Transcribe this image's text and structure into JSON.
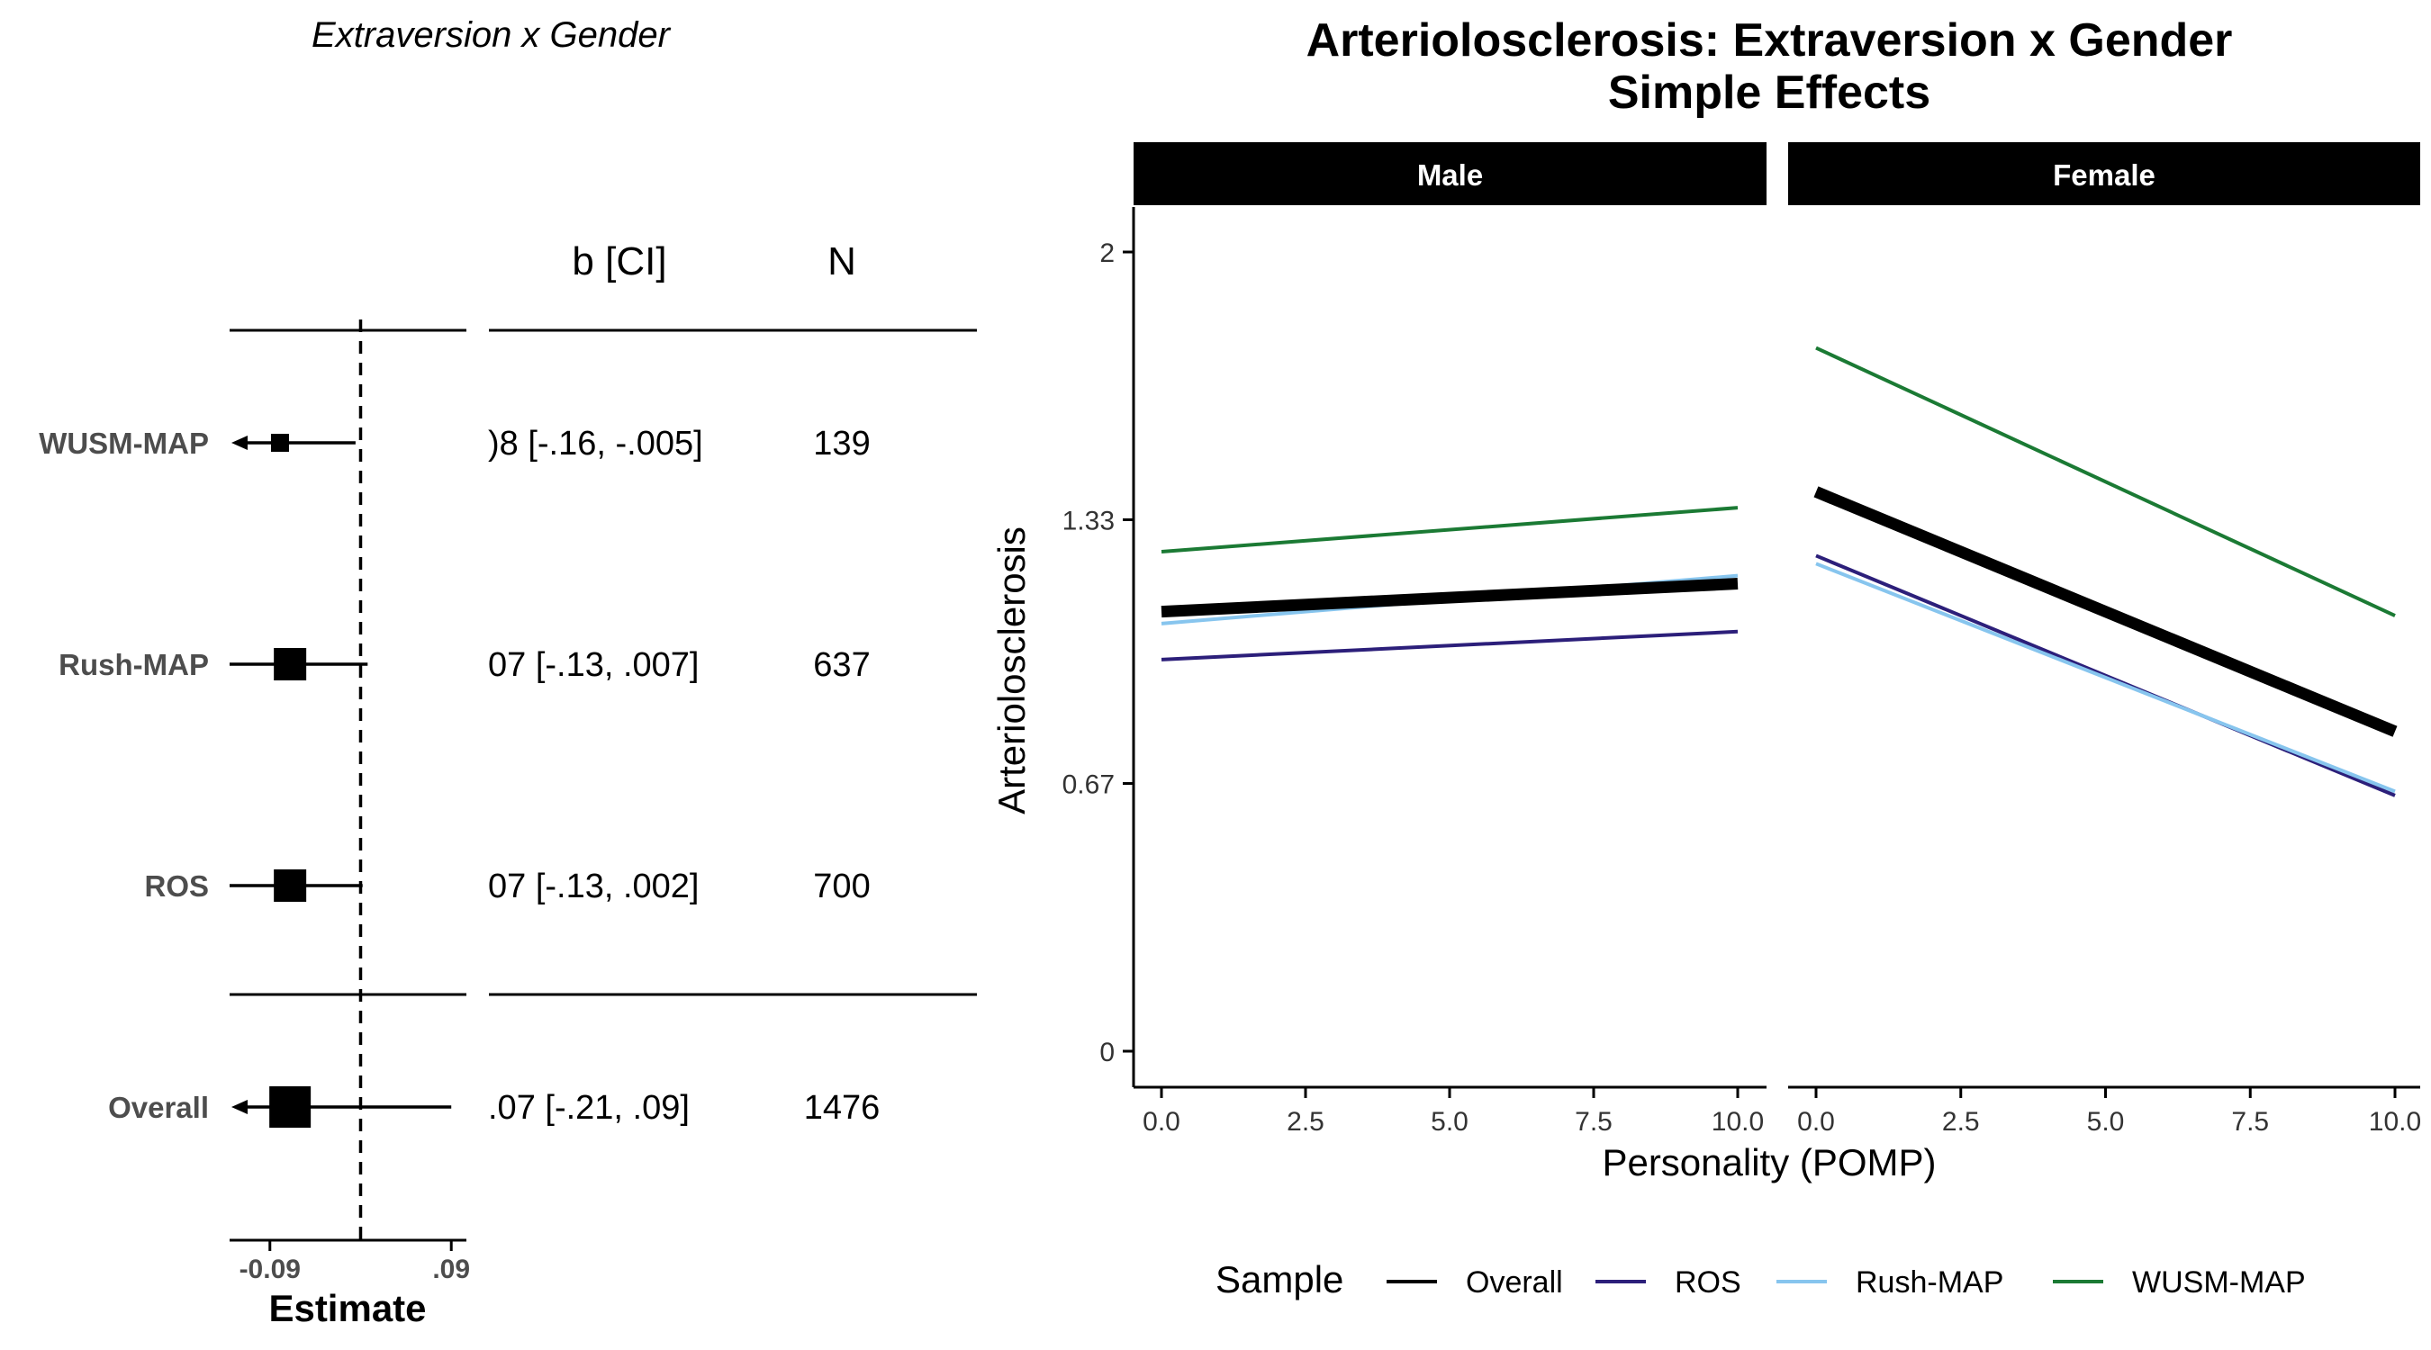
{
  "chart_data": [
    {
      "type": "forest",
      "title": "Extraversion x Gender",
      "columns": {
        "estimate": "b [CI]",
        "n": "N"
      },
      "xlabel": "Estimate",
      "xticks": [
        "-0.09",
        ".09"
      ],
      "xlim": [
        -0.13,
        0.105
      ],
      "reference_line": 0,
      "rows": [
        {
          "label": "WUSM-MAP",
          "estimate": -0.08,
          "lower": -0.16,
          "upper": -0.005,
          "text": ")8 [-.16, -.005]",
          "n": "139",
          "size": 1
        },
        {
          "label": "Rush-MAP",
          "estimate": -0.07,
          "lower": -0.13,
          "upper": 0.007,
          "text": "07 [-.13, .007]",
          "n": "637",
          "size": 2
        },
        {
          "label": "ROS",
          "estimate": -0.07,
          "lower": -0.13,
          "upper": 0.002,
          "text": "07 [-.13, .002]",
          "n": "700",
          "size": 2
        },
        {
          "label": "Overall",
          "estimate": -0.07,
          "lower": -0.21,
          "upper": 0.09,
          "text": ".07 [-.21, .09]",
          "n": "1476",
          "size": 3
        }
      ]
    },
    {
      "type": "line",
      "title": "Arteriolosclerosis: Extraversion x Gender",
      "subtitle": "Simple Effects",
      "xlabel": "Personality (POMP)",
      "ylabel": "Arteriolosclerosis",
      "xlim": [
        0,
        10
      ],
      "ylim": [
        0,
        2
      ],
      "xticks": [
        "0.0",
        "2.5",
        "5.0",
        "7.5",
        "10.0"
      ],
      "yticks": [
        "0",
        "0.67",
        "1.33",
        "2"
      ],
      "legend_title": "Sample",
      "legend_position": "bottom",
      "facets": [
        {
          "name": "Male",
          "series": [
            {
              "name": "WUSM-MAP",
              "x": [
                0,
                10
              ],
              "values": [
                1.25,
                1.36
              ]
            },
            {
              "name": "Overall",
              "x": [
                0,
                10
              ],
              "values": [
                1.1,
                1.17
              ]
            },
            {
              "name": "Rush-MAP",
              "x": [
                0,
                10
              ],
              "values": [
                1.07,
                1.19
              ]
            },
            {
              "name": "ROS",
              "x": [
                0,
                10
              ],
              "values": [
                0.98,
                1.05
              ]
            }
          ]
        },
        {
          "name": "Female",
          "series": [
            {
              "name": "WUSM-MAP",
              "x": [
                0,
                10
              ],
              "values": [
                1.76,
                1.09
              ]
            },
            {
              "name": "Overall",
              "x": [
                0,
                10
              ],
              "values": [
                1.4,
                0.8
              ]
            },
            {
              "name": "ROS",
              "x": [
                0,
                10
              ],
              "values": [
                1.24,
                0.64
              ]
            },
            {
              "name": "Rush-MAP",
              "x": [
                0,
                10
              ],
              "values": [
                1.22,
                0.65
              ]
            }
          ]
        }
      ],
      "legend": [
        {
          "name": "Overall",
          "color": "#000000"
        },
        {
          "name": "ROS",
          "color": "#2c1f7a"
        },
        {
          "name": "Rush-MAP",
          "color": "#87c5ee"
        },
        {
          "name": "WUSM-MAP",
          "color": "#1b7a34"
        }
      ]
    }
  ]
}
